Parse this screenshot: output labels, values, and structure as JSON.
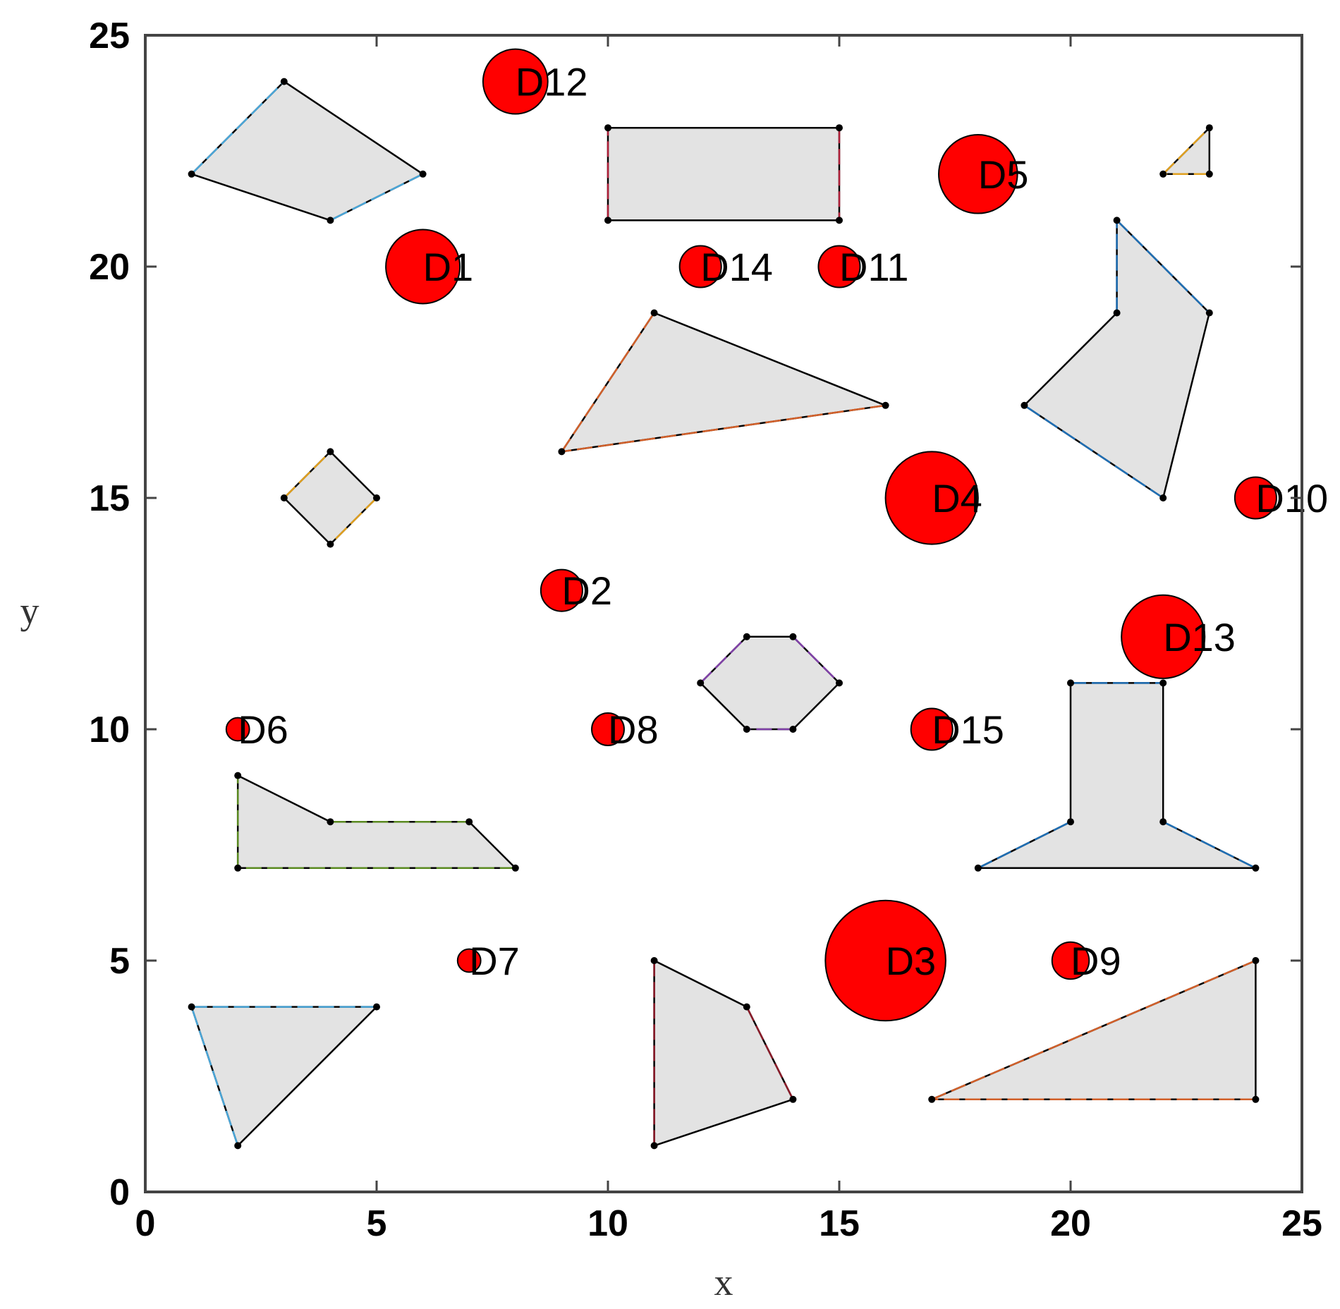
{
  "chart_data": {
    "type": "scatter",
    "title": "",
    "xlabel": "x",
    "ylabel": "y",
    "xlim": [
      0,
      25
    ],
    "ylim": [
      0,
      25
    ],
    "xticks": [
      0,
      5,
      10,
      15,
      20,
      25
    ],
    "yticks": [
      0,
      5,
      10,
      15,
      20,
      25
    ],
    "grid": false,
    "colors": {
      "disc_fill": "#ff0000",
      "disc_edge": "#000000",
      "obstacle_fill": "#e3e3e3",
      "vertex": "#000000"
    },
    "discs": [
      {
        "label": "D1",
        "x": 6,
        "y": 20,
        "r": 0.8
      },
      {
        "label": "D2",
        "x": 9,
        "y": 13,
        "r": 0.45
      },
      {
        "label": "D3",
        "x": 16,
        "y": 5,
        "r": 1.3
      },
      {
        "label": "D4",
        "x": 17,
        "y": 15,
        "r": 1.0
      },
      {
        "label": "D5",
        "x": 18,
        "y": 22,
        "r": 0.85
      },
      {
        "label": "D6",
        "x": 2,
        "y": 10,
        "r": 0.25
      },
      {
        "label": "D7",
        "x": 7,
        "y": 5,
        "r": 0.25
      },
      {
        "label": "D8",
        "x": 10,
        "y": 10,
        "r": 0.35
      },
      {
        "label": "D9",
        "x": 20,
        "y": 5,
        "r": 0.4
      },
      {
        "label": "D10",
        "x": 24,
        "y": 15,
        "r": 0.45
      },
      {
        "label": "D11",
        "x": 15,
        "y": 20,
        "r": 0.45
      },
      {
        "label": "D12",
        "x": 8,
        "y": 24,
        "r": 0.7
      },
      {
        "label": "D13",
        "x": 22,
        "y": 12,
        "r": 0.9
      },
      {
        "label": "D14",
        "x": 12,
        "y": 20,
        "r": 0.45
      },
      {
        "label": "D15",
        "x": 17,
        "y": 10,
        "r": 0.45
      }
    ],
    "obstacles": [
      {
        "edge_color": "#4aa6d8",
        "vertices": [
          [
            1,
            22
          ],
          [
            3,
            24
          ],
          [
            6,
            22
          ],
          [
            4,
            21
          ]
        ]
      },
      {
        "edge_color": "#b0203a",
        "vertices": [
          [
            10,
            21
          ],
          [
            10,
            23
          ],
          [
            15,
            23
          ],
          [
            15,
            21
          ]
        ]
      },
      {
        "edge_color": "#e0a020",
        "vertices": [
          [
            22,
            22
          ],
          [
            23,
            23
          ],
          [
            23,
            22
          ]
        ]
      },
      {
        "edge_color": "#1f6fb5",
        "vertices": [
          [
            21,
            21
          ],
          [
            23,
            19
          ],
          [
            22,
            15
          ],
          [
            19,
            17
          ],
          [
            21,
            19
          ]
        ]
      },
      {
        "edge_color": "#d2602a",
        "vertices": [
          [
            9,
            16
          ],
          [
            11,
            19
          ],
          [
            16,
            17
          ]
        ]
      },
      {
        "edge_color": "#e0a020",
        "vertices": [
          [
            3,
            15
          ],
          [
            4,
            16
          ],
          [
            5,
            15
          ],
          [
            4,
            14
          ]
        ]
      },
      {
        "edge_color": "#8040a8",
        "vertices": [
          [
            12,
            11
          ],
          [
            13,
            12
          ],
          [
            14,
            12
          ],
          [
            15,
            11
          ],
          [
            14,
            10
          ],
          [
            13,
            10
          ]
        ]
      },
      {
        "edge_color": "#5a8a20",
        "vertices": [
          [
            2,
            7
          ],
          [
            2,
            9
          ],
          [
            4,
            8
          ],
          [
            7,
            8
          ],
          [
            8,
            7
          ]
        ]
      },
      {
        "edge_color": "#1f6fb5",
        "vertices": [
          [
            18,
            7
          ],
          [
            20,
            8
          ],
          [
            20,
            11
          ],
          [
            22,
            11
          ],
          [
            22,
            8
          ],
          [
            24,
            7
          ]
        ]
      },
      {
        "edge_color": "#4aa6d8",
        "vertices": [
          [
            1,
            4
          ],
          [
            5,
            4
          ],
          [
            2,
            1
          ]
        ]
      },
      {
        "edge_color": "#8a1a28",
        "vertices": [
          [
            11,
            1
          ],
          [
            11,
            5
          ],
          [
            13,
            4
          ],
          [
            14,
            2
          ]
        ]
      },
      {
        "edge_color": "#d2602a",
        "vertices": [
          [
            17,
            2
          ],
          [
            24,
            5
          ],
          [
            24,
            2
          ]
        ]
      }
    ]
  }
}
